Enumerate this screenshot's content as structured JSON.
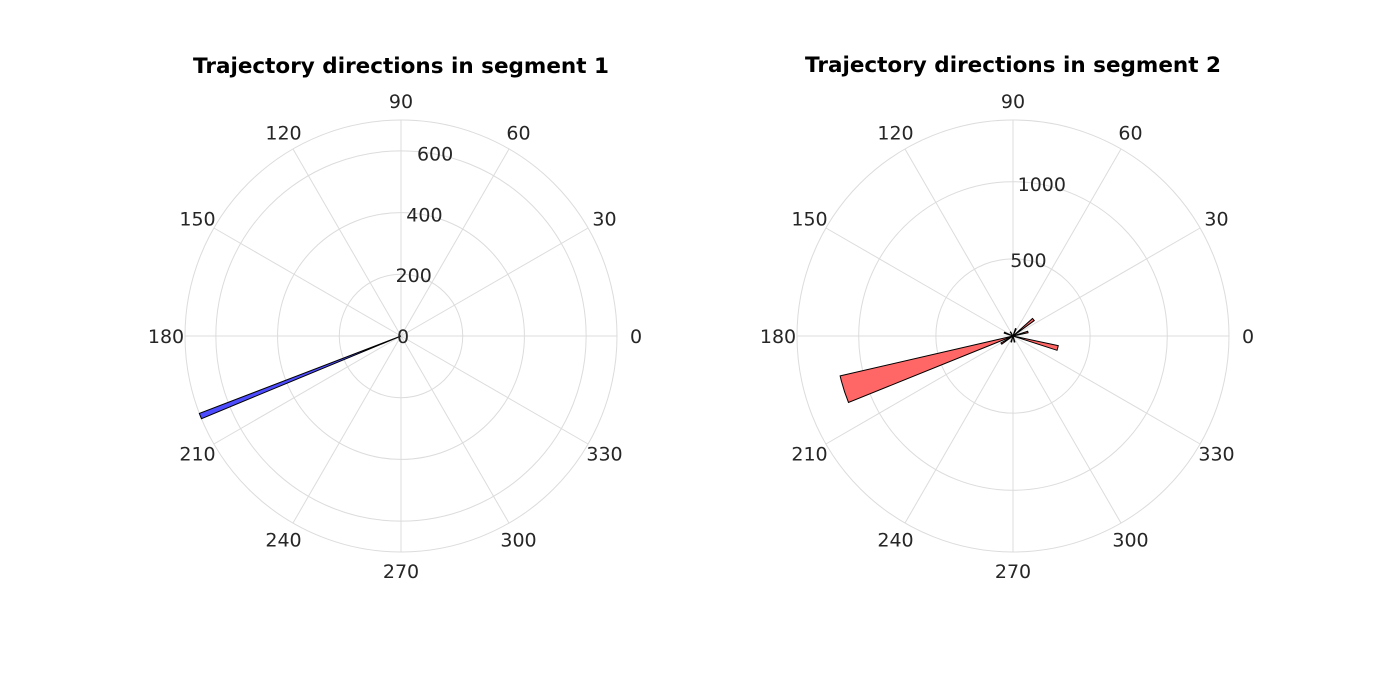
{
  "chart_data": [
    {
      "type": "polar-histogram",
      "title": "Trajectory directions in segment 1",
      "theta_ticks": [
        "0",
        "30",
        "60",
        "90",
        "120",
        "150",
        "180",
        "210",
        "240",
        "270",
        "300",
        "330"
      ],
      "r_ticks": [
        "0",
        "200",
        "400",
        "600"
      ],
      "r_tick_values": [
        0,
        200,
        400,
        600
      ],
      "rlim": [
        0,
        700
      ],
      "grid": true,
      "bar_color": "#4d4dff",
      "bins": [
        {
          "start_deg": 201,
          "end_deg": 202.5,
          "count": 700
        }
      ]
    },
    {
      "type": "polar-histogram",
      "title": "Trajectory directions in segment 2",
      "theta_ticks": [
        "0",
        "30",
        "60",
        "90",
        "120",
        "150",
        "180",
        "210",
        "240",
        "270",
        "300",
        "330"
      ],
      "r_ticks": [
        "500",
        "1000"
      ],
      "r_tick_values": [
        500,
        1000
      ],
      "rlim": [
        0,
        1400
      ],
      "grid": true,
      "bar_color": "#ff6666",
      "bins": [
        {
          "start_deg": 193,
          "end_deg": 202,
          "count": 1150
        },
        {
          "start_deg": 342,
          "end_deg": 348,
          "count": 300
        },
        {
          "start_deg": 36,
          "end_deg": 42,
          "count": 170
        },
        {
          "start_deg": 12,
          "end_deg": 18,
          "count": 100
        },
        {
          "start_deg": 210,
          "end_deg": 216,
          "count": 90
        },
        {
          "start_deg": 156,
          "end_deg": 162,
          "count": 60
        },
        {
          "start_deg": 66,
          "end_deg": 72,
          "count": 50
        },
        {
          "start_deg": 282,
          "end_deg": 288,
          "count": 40
        },
        {
          "start_deg": 250,
          "end_deg": 256,
          "count": 40
        },
        {
          "start_deg": 120,
          "end_deg": 126,
          "count": 30
        }
      ]
    }
  ]
}
